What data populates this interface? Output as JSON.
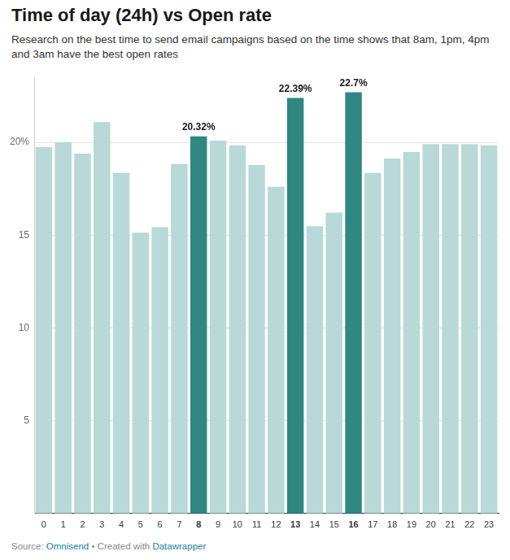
{
  "chart_data": {
    "type": "bar",
    "title": "Time of day (24h) vs Open rate",
    "subtitle": "Research on the best time to send email campaigns based on the time shows that 8am, 1pm, 4pm and 3am have the best open rates",
    "footer": {
      "source_label": "Source:",
      "source": "Omnisend",
      "separator": "•",
      "credit_label": "Created with",
      "credit": "Datawrapper"
    },
    "categories": [
      "0",
      "1",
      "2",
      "3",
      "4",
      "5",
      "6",
      "7",
      "8",
      "9",
      "10",
      "11",
      "12",
      "13",
      "14",
      "15",
      "16",
      "17",
      "18",
      "19",
      "20",
      "21",
      "22",
      "23"
    ],
    "values": [
      19.74,
      20.0,
      19.39,
      21.09,
      18.35,
      15.13,
      15.43,
      18.83,
      20.32,
      20.09,
      19.83,
      18.78,
      17.61,
      22.39,
      15.48,
      16.22,
      22.7,
      18.35,
      19.13,
      19.48,
      19.91,
      19.91,
      19.91,
      19.83
    ],
    "value_labels": [
      null,
      null,
      null,
      null,
      null,
      null,
      null,
      null,
      "20.32%",
      null,
      null,
      null,
      null,
      "22.39%",
      null,
      null,
      "22.7%",
      null,
      null,
      null,
      null,
      null,
      null,
      null
    ],
    "colors": [
      "#b9d8d8",
      "#b9d8d8",
      "#b9d8d8",
      "#b9d8d8",
      "#b9d8d8",
      "#b9d8d8",
      "#b9d8d8",
      "#b9d8d8",
      "#2e8780",
      "#b9d8d8",
      "#b9d8d8",
      "#b9d8d8",
      "#b9d8d8",
      "#2e8780",
      "#b9d8d8",
      "#b9d8d8",
      "#2e8780",
      "#b9d8d8",
      "#b9d8d8",
      "#b9d8d8",
      "#b9d8d8",
      "#b9d8d8",
      "#b9d8d8",
      "#b9d8d8"
    ],
    "ylim": [
      0,
      23.5
    ],
    "yticks": [
      5,
      10,
      15,
      {
        "value": 20,
        "label": "20%"
      }
    ],
    "grid": true,
    "data_labels": true
  }
}
